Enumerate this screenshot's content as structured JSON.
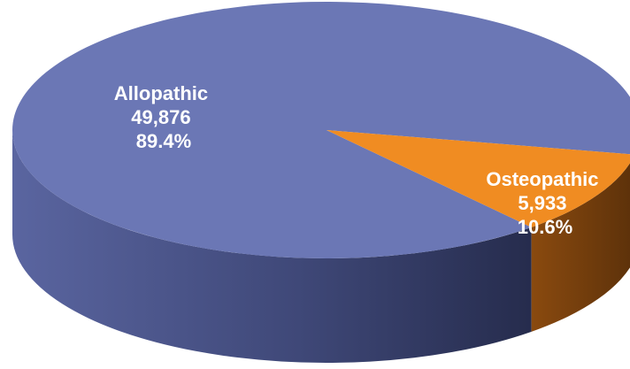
{
  "chart_data": {
    "type": "pie",
    "style": "3d",
    "slices": [
      {
        "name": "Allopathic",
        "value": 49876,
        "value_label": "49,876",
        "percent": 89.4,
        "percent_label": "89.4%",
        "color": "#6b77b5"
      },
      {
        "name": "Osteopathic",
        "value": 5933,
        "value_label": "5,933",
        "percent": 10.6,
        "percent_label": "10.6%",
        "color": "#f08c22"
      }
    ],
    "legend": "none"
  }
}
